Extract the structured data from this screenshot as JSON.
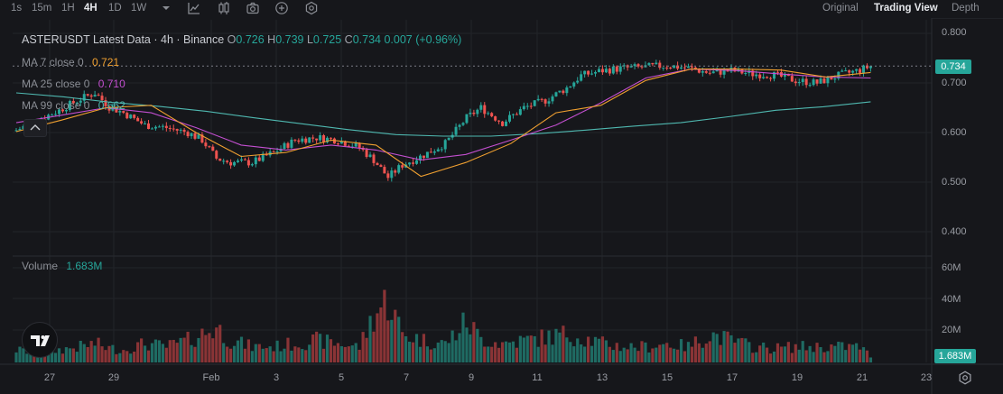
{
  "toolbar": {
    "timeframes": [
      "1s",
      "15m",
      "1H",
      "4H",
      "1D",
      "1W"
    ],
    "active_timeframe": "4H",
    "views": [
      "Original",
      "Trading View",
      "Depth"
    ],
    "active_view": "Trading View",
    "icons": [
      "chevron-down-icon",
      "line-chart-icon",
      "candle-chart-icon",
      "camera-icon",
      "plus-circle-icon",
      "settings-hex-icon"
    ]
  },
  "legend": {
    "title": "ASTERUSDT Latest Data · 4h · Binance",
    "open_label": "O",
    "open": "0.726",
    "high_label": "H",
    "high": "0.739",
    "low_label": "L",
    "low": "0.725",
    "close_label": "C",
    "close": "0.734",
    "change": "0.007 (+0.96%)",
    "ma7_label": "MA 7 close 0",
    "ma7_value": "0.721",
    "ma25_label": "MA 25 close 0",
    "ma25_value": "0.710",
    "ma99_label": "MA 99 close 0",
    "ma99_value": "0.662",
    "volume_label": "Volume",
    "volume_value": "1.683M"
  },
  "price_axis": {
    "ticks": [
      "0.800",
      "0.700",
      "0.600",
      "0.500",
      "0.400"
    ],
    "current_price": "0.734"
  },
  "volume_axis": {
    "ticks": [
      "60M",
      "40M",
      "20M"
    ],
    "current_volume": "1.683M"
  },
  "colors": {
    "up": "#26a69a",
    "down": "#ef5350",
    "ma7": "#f0a030",
    "ma25": "#c34fd0",
    "ma99": "#4fb8b0",
    "vol_up": "#1f6b63",
    "vol_down": "#8a3436"
  },
  "chart_data": {
    "type": "candlestick",
    "title": "ASTERUSDT Latest Data · 4h · Binance",
    "x_tick_labels": [
      "27",
      "29",
      "Feb",
      "3",
      "5",
      "7",
      "9",
      "11",
      "13",
      "15",
      "17",
      "19",
      "21",
      "23"
    ],
    "ylim": [
      0.4,
      0.8
    ],
    "volume_ylim": [
      0,
      60000000
    ],
    "grid": true,
    "anchors": [
      [
        0,
        0.605,
        8
      ],
      [
        6,
        0.625,
        6
      ],
      [
        12,
        0.645,
        8
      ],
      [
        18,
        0.668,
        10
      ],
      [
        22,
        0.68,
        12
      ],
      [
        26,
        0.652,
        9
      ],
      [
        30,
        0.64,
        8
      ],
      [
        36,
        0.615,
        12
      ],
      [
        42,
        0.61,
        10
      ],
      [
        48,
        0.6,
        14
      ],
      [
        52,
        0.585,
        18
      ],
      [
        56,
        0.548,
        22
      ],
      [
        60,
        0.54,
        14
      ],
      [
        66,
        0.54,
        10
      ],
      [
        72,
        0.56,
        10
      ],
      [
        78,
        0.585,
        12
      ],
      [
        84,
        0.59,
        14
      ],
      [
        90,
        0.585,
        12
      ],
      [
        96,
        0.57,
        10
      ],
      [
        100,
        0.545,
        30
      ],
      [
        104,
        0.51,
        40
      ],
      [
        108,
        0.535,
        18
      ],
      [
        114,
        0.555,
        14
      ],
      [
        120,
        0.578,
        12
      ],
      [
        126,
        0.63,
        26
      ],
      [
        130,
        0.65,
        15
      ],
      [
        136,
        0.62,
        12
      ],
      [
        142,
        0.65,
        14
      ],
      [
        148,
        0.665,
        16
      ],
      [
        154,
        0.69,
        18
      ],
      [
        158,
        0.715,
        16
      ],
      [
        164,
        0.725,
        12
      ],
      [
        170,
        0.73,
        10
      ],
      [
        176,
        0.732,
        10
      ],
      [
        182,
        0.735,
        12
      ],
      [
        188,
        0.73,
        10
      ],
      [
        194,
        0.72,
        18
      ],
      [
        200,
        0.725,
        14
      ],
      [
        206,
        0.718,
        10
      ],
      [
        212,
        0.716,
        9
      ],
      [
        218,
        0.705,
        10
      ],
      [
        224,
        0.7,
        10
      ],
      [
        230,
        0.715,
        10
      ],
      [
        236,
        0.726,
        10
      ],
      [
        239,
        0.734,
        4
      ]
    ],
    "ma7": [
      0.602,
      0.625,
      0.65,
      0.655,
      0.6,
      0.552,
      0.56,
      0.585,
      0.575,
      0.512,
      0.54,
      0.578,
      0.64,
      0.655,
      0.705,
      0.728,
      0.728,
      0.726,
      0.712,
      0.721
    ],
    "ma25": [
      0.62,
      0.635,
      0.65,
      0.64,
      0.61,
      0.575,
      0.565,
      0.575,
      0.565,
      0.545,
      0.556,
      0.585,
      0.615,
      0.66,
      0.71,
      0.728,
      0.725,
      0.718,
      0.712,
      0.71
    ],
    "ma99": [
      0.68,
      0.672,
      0.661,
      0.653,
      0.643,
      0.63,
      0.618,
      0.606,
      0.596,
      0.593,
      0.593,
      0.598,
      0.605,
      0.613,
      0.62,
      0.632,
      0.645,
      0.652,
      0.662
    ]
  }
}
